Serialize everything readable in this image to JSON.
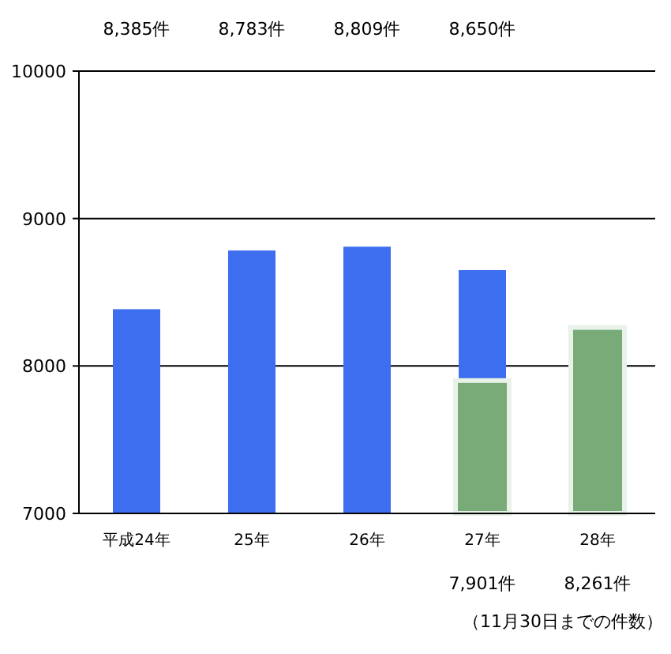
{
  "chart_data": {
    "type": "bar",
    "categories": [
      "平成24年",
      "25年",
      "26年",
      "27年",
      "28年"
    ],
    "series": [
      {
        "color": "#3d6ef0",
        "values": [
          8385,
          8783,
          8809,
          8650,
          null
        ],
        "value_labels": [
          "8,385件",
          "8,783件",
          "8,809件",
          "8,650件",
          null
        ]
      },
      {
        "color": "#78ab78",
        "values": [
          null,
          null,
          null,
          7901,
          8261
        ],
        "value_labels": [
          null,
          null,
          null,
          "7,901件",
          "8,261件"
        ]
      }
    ],
    "ylim": [
      7000,
      10000
    ],
    "yticks": [
      7000,
      8000,
      9000,
      10000
    ],
    "grid": "y",
    "annotations": [
      "（11月30日までの件数）"
    ]
  }
}
